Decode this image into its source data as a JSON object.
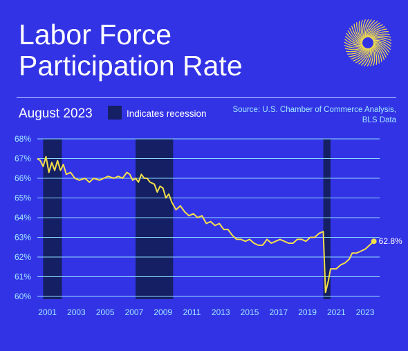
{
  "header": {
    "title_line1": "Labor Force",
    "title_line2": "Participation Rate",
    "subtitle": "August 2023",
    "legend_recession_label": "Indicates recession",
    "source_line1": "Source: U.S. Chamber of Commerce Analysis,",
    "source_line2": "BLS Data"
  },
  "colors": {
    "background": "#3333e6",
    "line": "#f5e04a",
    "recession": "#142063",
    "gridline": "#8fdcff",
    "axis_text": "#9fe8ff"
  },
  "icons": {
    "logo": "sunburst-logo-icon"
  },
  "chart_data": {
    "type": "line",
    "title": "Labor Force Participation Rate",
    "subtitle": "August 2023",
    "ylim": [
      60,
      68
    ],
    "xlim": [
      2000.3,
      2024.0
    ],
    "y_ticks": [
      60,
      61,
      62,
      63,
      64,
      65,
      66,
      67,
      68
    ],
    "y_tick_labels": [
      "60%",
      "61%",
      "62%",
      "63%",
      "64%",
      "65%",
      "66%",
      "67%",
      "68%"
    ],
    "x_ticks": [
      2001,
      2003,
      2005,
      2007,
      2009,
      2011,
      2013,
      2015,
      2017,
      2019,
      2021,
      2023
    ],
    "x_tick_labels": [
      "2001",
      "2003",
      "2005",
      "2007",
      "2009",
      "2011",
      "2013",
      "2015",
      "2017",
      "2019",
      "2021",
      "2023"
    ],
    "grid": "horizontal",
    "recessions": [
      {
        "label": "Indicates recession",
        "start": 2000.7,
        "end": 2002.0
      },
      {
        "label": "Indicates recession",
        "start": 2007.1,
        "end": 2009.7
      },
      {
        "label": "Indicates recession",
        "start": 2020.1,
        "end": 2020.6
      }
    ],
    "end_label": "62.8%",
    "series": [
      {
        "values": [
          [
            2000.3,
            67.0
          ],
          [
            2000.5,
            66.9
          ],
          [
            2000.7,
            66.6
          ],
          [
            2000.9,
            67.1
          ],
          [
            2001.1,
            66.3
          ],
          [
            2001.3,
            66.8
          ],
          [
            2001.5,
            66.4
          ],
          [
            2001.7,
            66.9
          ],
          [
            2001.9,
            66.4
          ],
          [
            2002.1,
            66.7
          ],
          [
            2002.3,
            66.2
          ],
          [
            2002.6,
            66.3
          ],
          [
            2002.9,
            66.0
          ],
          [
            2003.2,
            65.9
          ],
          [
            2003.6,
            66.0
          ],
          [
            2003.9,
            65.8
          ],
          [
            2004.2,
            66.0
          ],
          [
            2004.6,
            65.9
          ],
          [
            2004.9,
            66.0
          ],
          [
            2005.2,
            66.1
          ],
          [
            2005.6,
            66.0
          ],
          [
            2005.9,
            66.1
          ],
          [
            2006.2,
            66.0
          ],
          [
            2006.5,
            66.3
          ],
          [
            2006.7,
            66.2
          ],
          [
            2006.9,
            65.9
          ],
          [
            2007.1,
            66.0
          ],
          [
            2007.3,
            65.8
          ],
          [
            2007.5,
            66.2
          ],
          [
            2007.7,
            66.0
          ],
          [
            2007.9,
            66.0
          ],
          [
            2008.1,
            65.8
          ],
          [
            2008.4,
            65.7
          ],
          [
            2008.6,
            65.3
          ],
          [
            2008.8,
            65.6
          ],
          [
            2009.0,
            65.5
          ],
          [
            2009.2,
            65.0
          ],
          [
            2009.4,
            65.2
          ],
          [
            2009.6,
            64.8
          ],
          [
            2009.9,
            64.4
          ],
          [
            2010.2,
            64.6
          ],
          [
            2010.5,
            64.3
          ],
          [
            2010.8,
            64.1
          ],
          [
            2011.1,
            64.2
          ],
          [
            2011.4,
            64.0
          ],
          [
            2011.7,
            64.1
          ],
          [
            2012.0,
            63.7
          ],
          [
            2012.3,
            63.8
          ],
          [
            2012.6,
            63.6
          ],
          [
            2012.9,
            63.7
          ],
          [
            2013.2,
            63.4
          ],
          [
            2013.5,
            63.4
          ],
          [
            2013.8,
            63.1
          ],
          [
            2014.1,
            62.9
          ],
          [
            2014.4,
            62.9
          ],
          [
            2014.7,
            62.8
          ],
          [
            2015.0,
            62.9
          ],
          [
            2015.3,
            62.7
          ],
          [
            2015.6,
            62.6
          ],
          [
            2015.9,
            62.6
          ],
          [
            2016.2,
            62.9
          ],
          [
            2016.5,
            62.7
          ],
          [
            2016.8,
            62.8
          ],
          [
            2017.1,
            62.9
          ],
          [
            2017.4,
            62.8
          ],
          [
            2017.7,
            62.7
          ],
          [
            2018.0,
            62.7
          ],
          [
            2018.3,
            62.9
          ],
          [
            2018.6,
            62.9
          ],
          [
            2018.9,
            62.8
          ],
          [
            2019.2,
            63.0
          ],
          [
            2019.5,
            63.0
          ],
          [
            2019.8,
            63.2
          ],
          [
            2020.1,
            63.3
          ],
          [
            2020.25,
            60.2
          ],
          [
            2020.45,
            60.8
          ],
          [
            2020.6,
            61.4
          ],
          [
            2020.8,
            61.4
          ],
          [
            2021.0,
            61.4
          ],
          [
            2021.3,
            61.6
          ],
          [
            2021.6,
            61.7
          ],
          [
            2021.9,
            61.9
          ],
          [
            2022.1,
            62.2
          ],
          [
            2022.4,
            62.2
          ],
          [
            2022.7,
            62.3
          ],
          [
            2023.0,
            62.4
          ],
          [
            2023.3,
            62.6
          ],
          [
            2023.6,
            62.8
          ]
        ]
      }
    ]
  }
}
